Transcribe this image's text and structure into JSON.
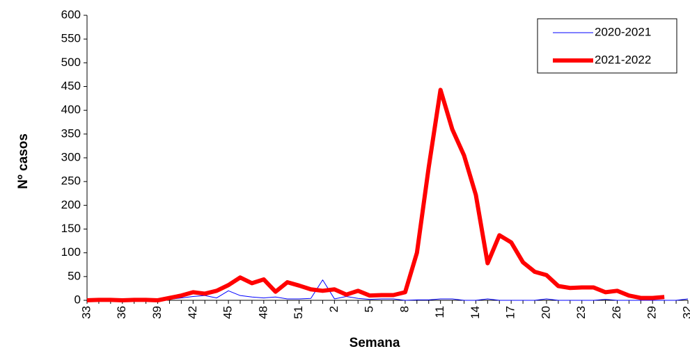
{
  "chart_data": {
    "type": "line",
    "xlabel": "Semana",
    "ylabel": "Nº casos",
    "categories": [
      "33",
      null,
      null,
      "36",
      null,
      null,
      "39",
      null,
      null,
      "42",
      null,
      null,
      "45",
      null,
      null,
      "48",
      null,
      null,
      "51",
      null,
      null,
      "2",
      null,
      null,
      "5",
      null,
      null,
      "8",
      null,
      null,
      "11",
      null,
      null,
      "14",
      null,
      null,
      "17",
      null,
      null,
      "20",
      null,
      null,
      "23",
      null,
      null,
      "26",
      null,
      null,
      "29",
      null,
      null,
      "32"
    ],
    "series": [
      {
        "name": "2020-2021",
        "color": "#0000ff",
        "width": 1,
        "values": [
          0,
          0,
          0,
          0,
          0,
          0,
          0,
          2,
          5,
          8,
          10,
          5,
          20,
          10,
          7,
          5,
          7,
          3,
          3,
          4,
          43,
          3,
          8,
          4,
          2,
          3,
          3,
          0,
          1,
          1,
          3,
          3,
          0,
          0,
          3,
          0,
          0,
          0,
          0,
          3,
          0,
          0,
          0,
          0,
          2,
          0,
          0,
          0,
          0,
          0,
          0,
          3
        ]
      },
      {
        "name": "2021-2022",
        "color": "#ff0000",
        "width": 6,
        "values": [
          0,
          1,
          1,
          0,
          1,
          1,
          0,
          5,
          10,
          17,
          14,
          20,
          32,
          48,
          36,
          44,
          18,
          38,
          31,
          23,
          20,
          23,
          12,
          20,
          10,
          11,
          11,
          17,
          100,
          280,
          443,
          360,
          305,
          222,
          78,
          137,
          122,
          80,
          60,
          53,
          30,
          26,
          27,
          27,
          17,
          20,
          10,
          5,
          5,
          7,
          null,
          null
        ]
      }
    ],
    "ylim": [
      0,
      600
    ],
    "yticks": [
      0,
      50,
      100,
      150,
      200,
      250,
      300,
      350,
      400,
      450,
      500,
      550,
      600
    ],
    "legend": "upper right"
  }
}
